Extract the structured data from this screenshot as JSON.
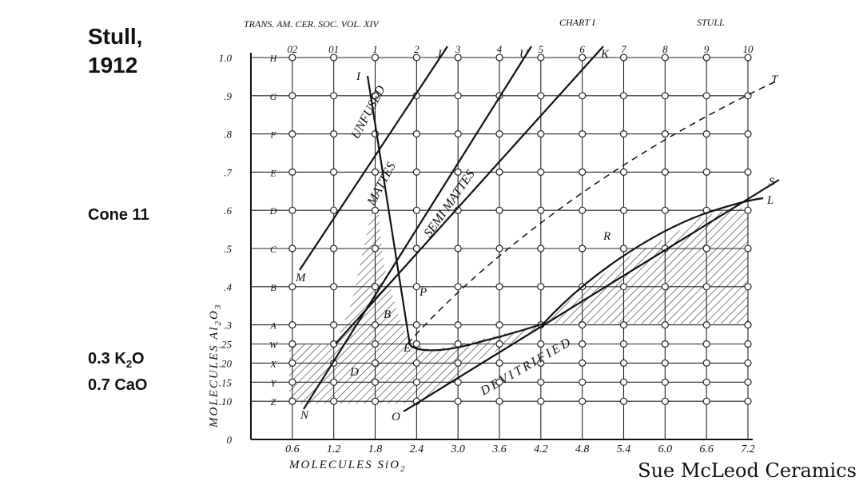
{
  "slide": {
    "title": "Stull,",
    "year": "1912",
    "cone": "Cone 11",
    "flux1": {
      "text": "0.3 K",
      "sub": "2",
      "end": "O"
    },
    "flux2": "0.7 CaO",
    "credit": "Sue McLeod Ceramics"
  },
  "chart_data": {
    "type": "stull-grid",
    "header_left": "TRANS. AM. CER. SOC. VOL. XIV",
    "header_mid": "CHART I",
    "header_right": "STULL",
    "xlabel": {
      "text": "MOLECULES SiO",
      "sub": "2"
    },
    "ylabel": {
      "text": "MOLECULES Al",
      "sub1": "2",
      "mid": "O",
      "sub2": "3"
    },
    "xlim": [
      0,
      7.2
    ],
    "ylim": [
      0,
      1.0
    ],
    "xticks": [
      0.6,
      1.2,
      1.8,
      2.4,
      {
        "value": 3,
        "label": "3.0"
      },
      3.6,
      4.2,
      4.8,
      5.4,
      {
        "value": 6,
        "label": "6.0"
      },
      6.6,
      7.2
    ],
    "yticks": [
      0,
      {
        "value": 0.1,
        "label": ".10"
      },
      {
        "value": 0.15,
        "label": ".15"
      },
      {
        "value": 0.2,
        "label": ".20"
      },
      {
        "value": 0.25,
        "label": ".25"
      },
      {
        "value": 0.3,
        "label": ".3"
      },
      {
        "value": 0.4,
        "label": ".4"
      },
      {
        "value": 0.5,
        "label": ".5"
      },
      {
        "value": 0.6,
        "label": ".6"
      },
      {
        "value": 0.7,
        "label": ".7"
      },
      {
        "value": 0.8,
        "label": ".8"
      },
      {
        "value": 0.9,
        "label": ".9"
      },
      {
        "value": 1,
        "label": "1.0"
      }
    ],
    "row_letters": [
      null,
      "Z",
      "Y",
      "X",
      "W",
      "A",
      "B",
      "C",
      "D",
      "E",
      "F",
      "G",
      "H"
    ],
    "column_labels": [
      "02",
      "01",
      "1",
      "2",
      "3",
      "4",
      "5",
      "6",
      "7",
      "8",
      "9",
      "10"
    ],
    "grid": true,
    "regions": [
      "UNFUSED",
      "MATTES",
      "SEMI MATTES",
      "DEVITRIFIED"
    ],
    "points": [
      "M",
      "N",
      "O",
      "I",
      "J",
      "U",
      "K",
      "T",
      "S",
      "L",
      "R",
      "P",
      "B",
      "D",
      "E"
    ]
  }
}
